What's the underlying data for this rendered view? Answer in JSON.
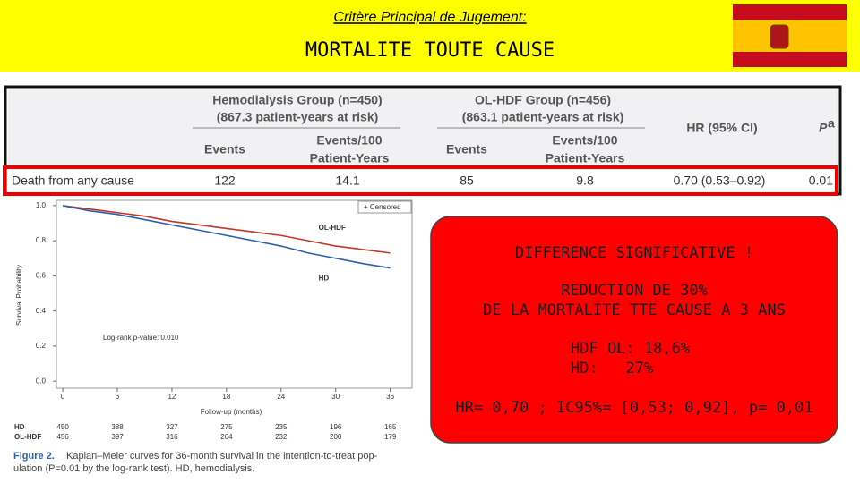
{
  "header": {
    "subtitle": "Critère Principal de Jugement:",
    "title": "MORTALITE TOUTE CAUSE"
  },
  "table": {
    "groups": [
      {
        "line1": "Hemodialysis Group (n=450)",
        "line2": "(867.3 patient-years at risk)"
      },
      {
        "line1": "OL-HDF Group (n=456)",
        "line2": "(863.1 patient-years at risk)"
      }
    ],
    "columns": [
      {
        "line1": "Events"
      },
      {
        "line1": "Events/100",
        "line2": "Patient-Years"
      },
      {
        "line1": "Events"
      },
      {
        "line1": "Events/100",
        "line2": "Patient-Years"
      },
      {
        "line1": "HR (95% CI)"
      },
      {
        "line1": "P",
        "superscript": "a"
      }
    ],
    "rows": [
      [
        "Death from any cause",
        122,
        14.1,
        85,
        9.8,
        "0.70 (0.53–0.92)",
        0.01
      ]
    ]
  },
  "chart_data": {
    "type": "line",
    "x_label": "Follow-up (months)",
    "y_label": "Survival Probability",
    "x": [
      0,
      3,
      6,
      9,
      12,
      15,
      18,
      21,
      24,
      27,
      30,
      33,
      36
    ],
    "series": [
      {
        "name": "OL-HDF",
        "color": "#c0392b",
        "values": [
          1.0,
          0.98,
          0.96,
          0.94,
          0.91,
          0.89,
          0.87,
          0.85,
          0.83,
          0.8,
          0.77,
          0.75,
          0.73
        ]
      },
      {
        "name": "HD",
        "color": "#2e5fa8",
        "values": [
          1.0,
          0.97,
          0.95,
          0.92,
          0.89,
          0.86,
          0.83,
          0.8,
          0.77,
          0.73,
          0.7,
          0.67,
          0.645
        ]
      }
    ],
    "xlim": [
      -0.7,
      38.4
    ],
    "ylim": [
      -0.04,
      1.03
    ],
    "xticks": [
      0,
      6,
      12,
      18,
      24,
      30,
      36
    ],
    "yticks": [
      {
        "value": 0,
        "label": "0.0"
      },
      0.2,
      0.4,
      0.6,
      0.8,
      {
        "value": 1,
        "label": "1.0"
      }
    ],
    "legend": "+ Censored",
    "annotation": "Log-rank p-value: 0.010",
    "at_risk": [
      {
        "name": "HD",
        "values": [
          450,
          388,
          327,
          275,
          235,
          196,
          165
        ]
      },
      {
        "name": "OL-HDF",
        "values": [
          456,
          397,
          316,
          264,
          232,
          200,
          179
        ]
      }
    ]
  },
  "caption": {
    "label": "Figure 2.",
    "lines": [
      "Kaplan–Meier curves for 36-month survival in the intention-to-treat pop-",
      "ulation (P=0.01 by the log-rank test). HD, hemodialysis."
    ]
  },
  "callout": {
    "lines": [
      "DIFFERENCE SIGNIFICATIVE !",
      "REDUCTION DE 30%",
      "DE LA MORTALITE TTE CAUSE A 3 ANS",
      "HDF OL: 18,6%",
      "HD:   27%",
      "HR= 0,70 ; IC95%= [0,53; 0,92], p= 0,01"
    ]
  }
}
